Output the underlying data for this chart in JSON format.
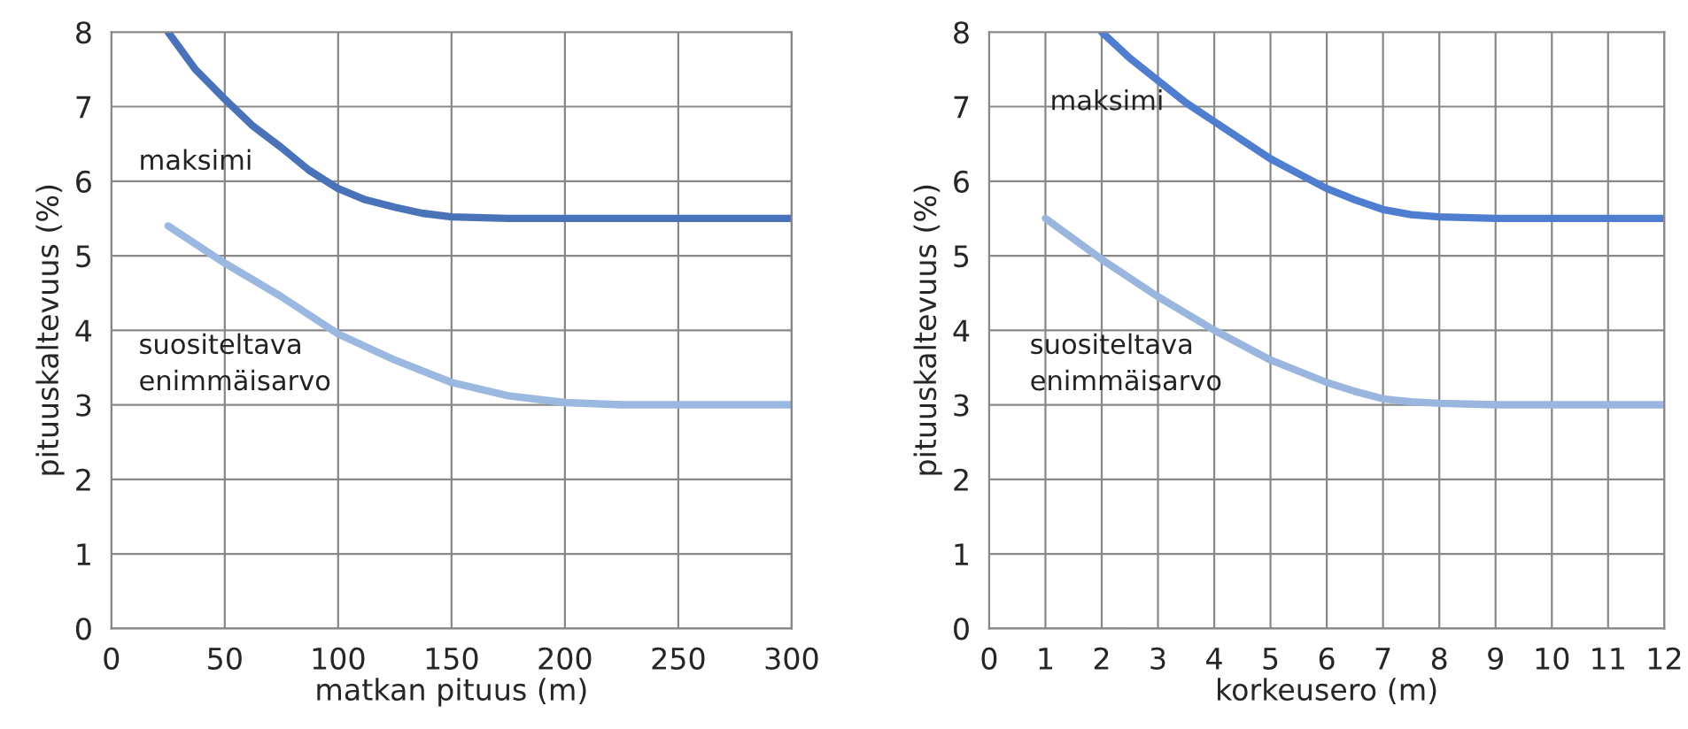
{
  "chart_data": [
    {
      "type": "line",
      "xlabel": "matkan pituus (m)",
      "ylabel": "pituuskaltevuus (%)",
      "xlim": [
        0,
        300
      ],
      "xticks": [
        0,
        50,
        100,
        150,
        200,
        250,
        300
      ],
      "ylim": [
        0,
        8
      ],
      "yticks": [
        0,
        1,
        2,
        3,
        4,
        5,
        6,
        7,
        8
      ],
      "grid": true,
      "legend": false,
      "series": [
        {
          "name": "maksimi",
          "color": "#4a72b8",
          "x": [
            25,
            37,
            50,
            62,
            75,
            87,
            100,
            112,
            125,
            137,
            150,
            175,
            200,
            250,
            300
          ],
          "values": [
            8,
            7.5,
            7.1,
            6.75,
            6.45,
            6.15,
            5.9,
            5.75,
            5.65,
            5.57,
            5.52,
            5.5,
            5.5,
            5.5,
            5.5
          ]
        },
        {
          "name": "suositeltava\nenimmäisarvo",
          "color": "#9ab8e0",
          "x": [
            25,
            50,
            75,
            100,
            125,
            150,
            175,
            200,
            225,
            250,
            300
          ],
          "values": [
            5.4,
            4.9,
            4.45,
            3.95,
            3.6,
            3.3,
            3.12,
            3.03,
            3.0,
            3.0,
            3.0
          ]
        }
      ]
    },
    {
      "type": "line",
      "xlabel": "korkeusero (m)",
      "ylabel": "pituuskaltevuus (%)",
      "xlim": [
        0,
        12
      ],
      "xticks": [
        0,
        1,
        2,
        3,
        4,
        5,
        6,
        7,
        8,
        9,
        10,
        11,
        12
      ],
      "ylim": [
        0,
        8
      ],
      "yticks": [
        0,
        1,
        2,
        3,
        4,
        5,
        6,
        7,
        8
      ],
      "grid": true,
      "legend": false,
      "series": [
        {
          "name": "maksimi",
          "color": "#4f7ed0",
          "x": [
            2,
            2.5,
            3,
            3.5,
            4,
            4.5,
            5,
            5.5,
            6,
            6.5,
            7,
            7.5,
            8,
            9,
            10,
            12
          ],
          "values": [
            8,
            7.65,
            7.35,
            7.05,
            6.8,
            6.55,
            6.3,
            6.1,
            5.9,
            5.75,
            5.62,
            5.55,
            5.52,
            5.5,
            5.5,
            5.5
          ]
        },
        {
          "name": "suositeltava\nenimmäisarvo",
          "color": "#9ab5de",
          "x": [
            1,
            2,
            3,
            4,
            5,
            6,
            6.5,
            7,
            7.5,
            8,
            9,
            10,
            12
          ],
          "values": [
            5.5,
            4.95,
            4.45,
            4.0,
            3.6,
            3.3,
            3.18,
            3.08,
            3.04,
            3.02,
            3.0,
            3.0,
            3.0
          ]
        }
      ]
    }
  ]
}
